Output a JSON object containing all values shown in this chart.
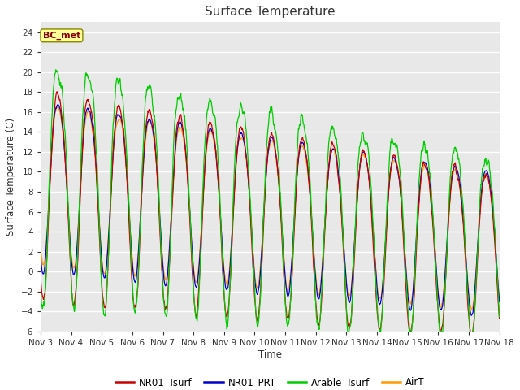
{
  "title": "Surface Temperature",
  "ylabel": "Surface Temperature (C)",
  "xlabel": "Time",
  "annotation": "BC_met",
  "ylim": [
    -6,
    25
  ],
  "yticks": [
    -6,
    -4,
    -2,
    0,
    2,
    4,
    6,
    8,
    10,
    12,
    14,
    16,
    18,
    20,
    22,
    24
  ],
  "xtick_labels": [
    "Nov 3",
    "Nov 4",
    "Nov 5",
    "Nov 6",
    "Nov 7",
    "Nov 8",
    "Nov 9",
    "Nov 10",
    "Nov 11",
    "Nov 12",
    "Nov 13",
    "Nov 14",
    "Nov 15",
    "Nov 16",
    "Nov 17",
    "Nov 18"
  ],
  "series_colors": {
    "NR01_Tsurf": "#cc0000",
    "NR01_PRT": "#0000cc",
    "Arable_Tsurf": "#00cc00",
    "AirT": "#ff9900"
  },
  "legend_labels": [
    "NR01_Tsurf",
    "NR01_PRT",
    "Arable_Tsurf",
    "AirT"
  ],
  "n_points": 1440,
  "days": 15,
  "figsize": [
    6.4,
    4.8
  ],
  "dpi": 100
}
